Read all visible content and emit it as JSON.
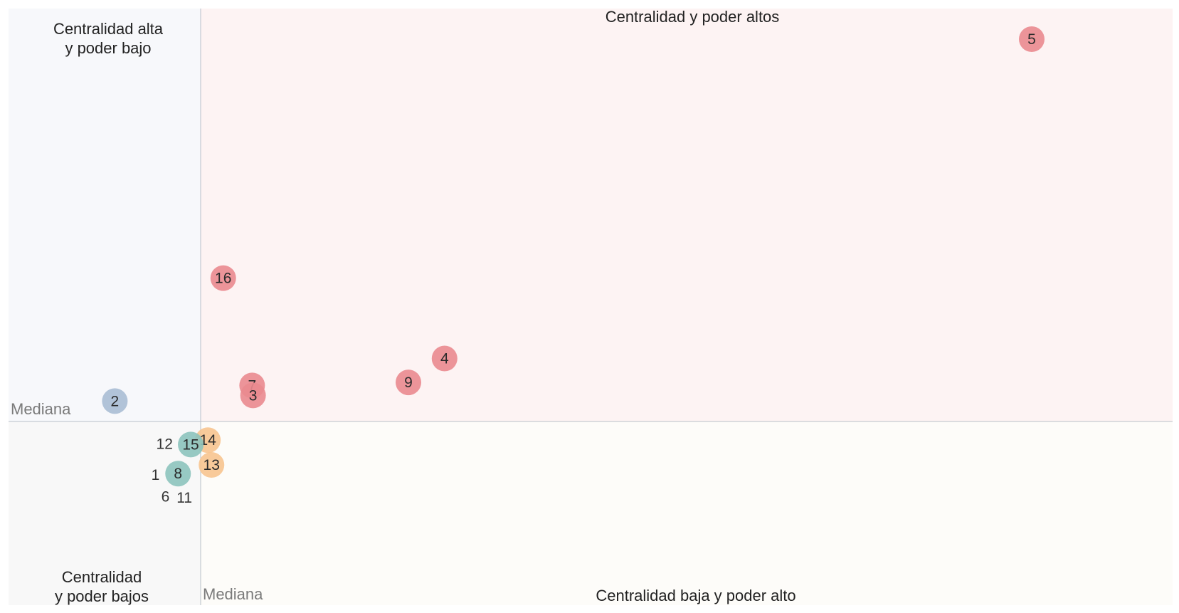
{
  "chart_data": {
    "type": "scatter",
    "title": "",
    "xlabel": "",
    "ylabel": "",
    "grid": false,
    "median_label": "Mediana",
    "quadrants": {
      "top_left": [
        "Centralidad alta",
        "y poder bajo"
      ],
      "top_right": [
        "Centralidad y poder altos"
      ],
      "bottom_left": [
        "Centralidad",
        "y poder bajos"
      ],
      "bottom_right": [
        "Centralidad baja y poder alto"
      ]
    },
    "colors": {
      "red": "#ea8a8f",
      "blue": "#a8bcd4",
      "teal": "#8cc3bc",
      "orange": "#f7c48f",
      "quadrant_top_left": "#f7f8fb",
      "quadrant_top_right": "#fdf3f3",
      "quadrant_bottom_left": "#f8f8f8",
      "quadrant_bottom_right": "#fdfcf9"
    },
    "points": [
      {
        "label": "5",
        "x": 0.92,
        "y": 0.88,
        "color": "red",
        "bubble": true
      },
      {
        "label": "16",
        "x": 0.025,
        "y": 0.33,
        "color": "red",
        "bubble": true
      },
      {
        "label": "4",
        "x": 0.27,
        "y": 0.145,
        "color": "red",
        "bubble": true
      },
      {
        "label": "9",
        "x": 0.23,
        "y": 0.09,
        "color": "red",
        "bubble": true
      },
      {
        "label": "7",
        "x": 0.057,
        "y": 0.083,
        "color": "red",
        "bubble": true
      },
      {
        "label": "3",
        "x": 0.058,
        "y": 0.06,
        "color": "red",
        "bubble": true
      },
      {
        "label": "2",
        "x": -0.095,
        "y": 0.047,
        "color": "blue",
        "bubble": true
      },
      {
        "label": "14",
        "x": 0.008,
        "y": -0.043,
        "color": "orange",
        "bubble": true
      },
      {
        "label": "13",
        "x": 0.012,
        "y": -0.1,
        "color": "orange",
        "bubble": true
      },
      {
        "label": "15",
        "x": -0.011,
        "y": -0.053,
        "color": "teal",
        "bubble": true
      },
      {
        "label": "8",
        "x": -0.025,
        "y": -0.12,
        "color": "teal",
        "bubble": true
      },
      {
        "label": "12",
        "x": -0.04,
        "y": -0.052,
        "bubble": false
      },
      {
        "label": "1",
        "x": -0.05,
        "y": -0.123,
        "bubble": false
      },
      {
        "label": "6",
        "x": -0.039,
        "y": -0.173,
        "bubble": false
      },
      {
        "label": "11",
        "x": -0.018,
        "y": -0.175,
        "bubble": false
      }
    ],
    "xlim": [
      -0.2,
      1.0
    ],
    "ylim": [
      -0.44,
      0.98
    ]
  }
}
